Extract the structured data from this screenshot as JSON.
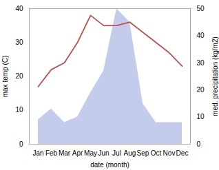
{
  "chart_data": {
    "type": "line",
    "categories": [
      "Jan",
      "Feb",
      "Mar",
      "Apr",
      "May",
      "Jun",
      "Jul",
      "Aug",
      "Sep",
      "Oct",
      "Nov",
      "Dec"
    ],
    "xlabel": "date (month)",
    "ylabel": "max temp (C)",
    "y2label": "med. precipitation (kg/m2)",
    "series": [
      {
        "type": "area",
        "axis": "y2",
        "color": "#b8c4e8",
        "values": [
          9,
          13,
          8,
          10,
          19,
          27,
          50,
          45,
          15,
          8,
          8,
          8
        ]
      },
      {
        "type": "line",
        "color": "#c0504d",
        "values": [
          17,
          22,
          24,
          30,
          38,
          35,
          35,
          36,
          33,
          30,
          27,
          23
        ]
      }
    ],
    "ylim": [
      0,
      40
    ],
    "yticks": [
      0,
      10,
      20,
      30,
      40
    ],
    "y2lim": [
      0,
      50
    ],
    "y2ticks": [
      0,
      10,
      20,
      30,
      40,
      50
    ],
    "grid": false
  }
}
